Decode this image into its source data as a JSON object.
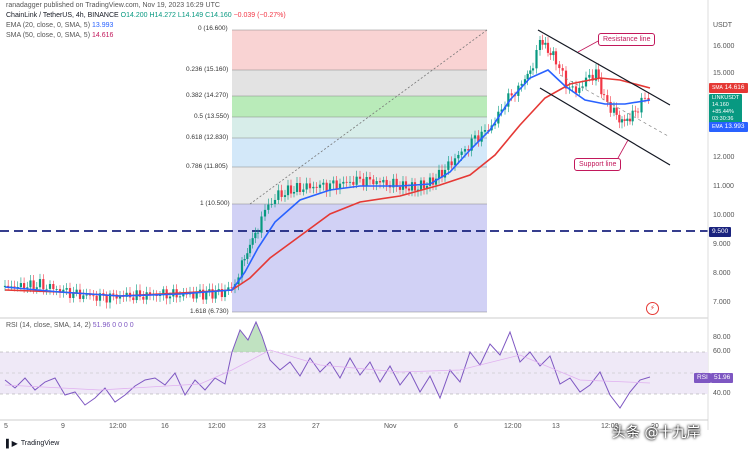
{
  "header": {
    "published": "ranadagger published on TradingView.com, Nov 19, 2023 16:29 UTC",
    "symbol": "ChainLink / TetherUS, 4h, BINANCE",
    "ohlc_o": "O14.200",
    "ohlc_h": "H14.272",
    "ohlc_l": "L14.149",
    "ohlc_c": "C14.160",
    "change": "−0.039 (−0.27%)",
    "ema_label": "EMA (20, close, 0, SMA, 5)",
    "ema_value": "13.993",
    "sma_label": "SMA (50, close, 0, SMA, 5)",
    "sma_value": "14.616"
  },
  "price_axis": {
    "currency": "USDT",
    "ticks": [
      "16.000",
      "15.000",
      "14.000",
      "13.000",
      "12.000",
      "11.000",
      "10.000",
      "9.000",
      "8.000",
      "7.000"
    ],
    "tag_sma": "14.616",
    "tag_pair": "LINKUSDT",
    "tag_price": "14.160",
    "tag_change": "+85.44%",
    "tag_time": "03:30:36",
    "tag_ema": "13.993",
    "tag_level": "9.500"
  },
  "fib_levels": [
    {
      "label": "0 (16.600)"
    },
    {
      "label": "0.236 (15.160)"
    },
    {
      "label": "0.382 (14.270)"
    },
    {
      "label": "0.5 (13.550)"
    },
    {
      "label": "0.618 (12.830)"
    },
    {
      "label": "0.786 (11.805)"
    },
    {
      "label": "1 (10.500)"
    },
    {
      "label": "1.618 (6.730)"
    }
  ],
  "annotations": {
    "resistance": "Resistance line",
    "support": "Support line"
  },
  "rsi": {
    "label": "RSI (14, close, SMA, 14, 2)",
    "values": "51.96 0 0 0 0",
    "tag_name": "RSI",
    "tag_value": "51.96",
    "ticks": [
      "80.00",
      "60.00",
      "40.00"
    ]
  },
  "time_axis": {
    "ticks": [
      "5",
      "9",
      "12:00",
      "16",
      "12:00",
      "23",
      "27",
      "Nov",
      "6",
      "12:00",
      "13",
      "12:00",
      "20"
    ]
  },
  "footer": {
    "logo": "TradingView"
  },
  "watermark": "头条 @十九岸",
  "colors": {
    "ema": "#2962ff",
    "sma": "#e53935",
    "up": "#089981",
    "down": "#f23645",
    "level": "#1a237e"
  }
}
